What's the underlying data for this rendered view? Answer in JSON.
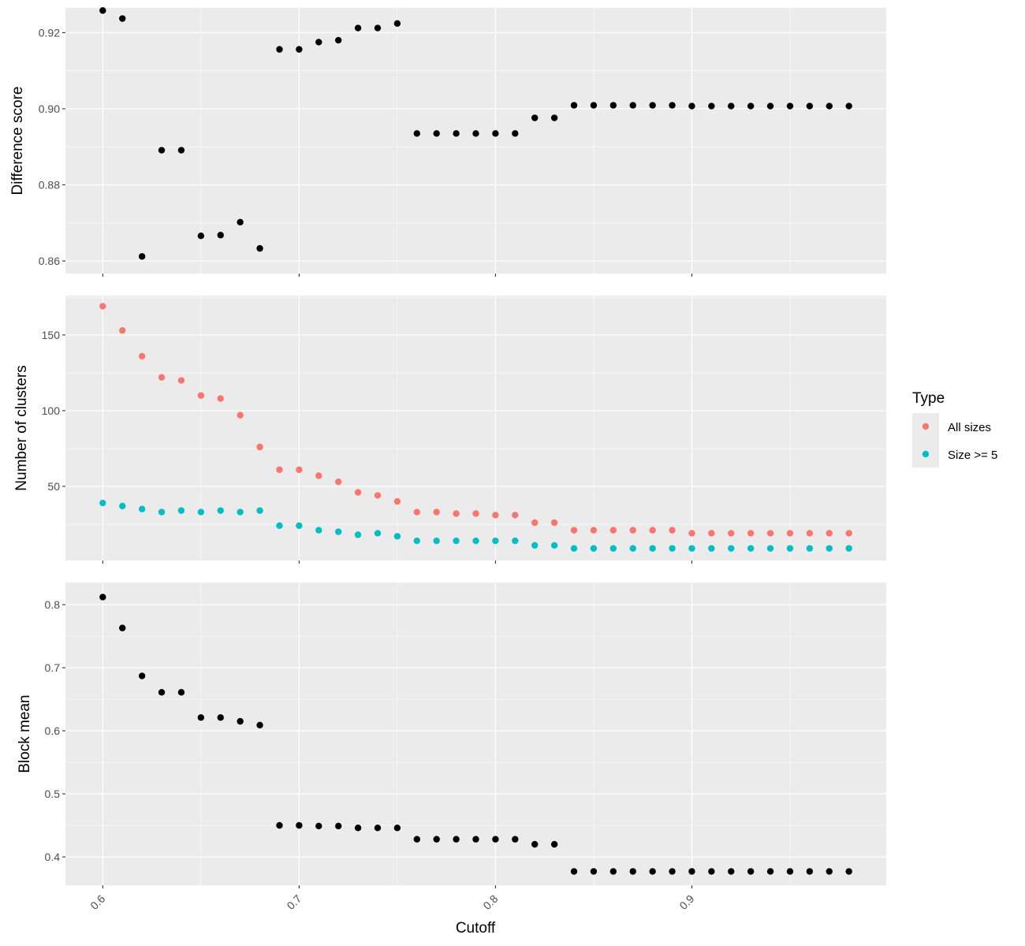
{
  "chart_data": {
    "type": "scatter",
    "facets": "vertical",
    "xlabel": "Cutoff",
    "x_ticks": [
      0.6,
      0.7,
      0.8,
      0.9
    ],
    "x_tick_labels": [
      "0.6",
      "0.7",
      "0.8",
      "0.9"
    ],
    "xlim": [
      0.581,
      0.999
    ],
    "x": [
      0.6,
      0.61,
      0.62,
      0.63,
      0.64,
      0.65,
      0.66,
      0.67,
      0.68,
      0.69,
      0.7,
      0.71,
      0.72,
      0.73,
      0.74,
      0.75,
      0.76,
      0.77,
      0.78,
      0.79,
      0.8,
      0.81,
      0.82,
      0.83,
      0.84,
      0.85,
      0.86,
      0.87,
      0.88,
      0.89,
      0.9,
      0.91,
      0.92,
      0.93,
      0.94,
      0.95,
      0.96,
      0.97,
      0.98
    ],
    "grid": true,
    "legend": {
      "title": "Type",
      "position": "right",
      "entries": [
        {
          "label": "All sizes",
          "color": "#F8766D"
        },
        {
          "label": "Size >= 5",
          "color": "#00BFC4"
        }
      ]
    },
    "panels": [
      {
        "ylabel": "Difference score",
        "ylim": [
          0.8567,
          0.9265
        ],
        "y_ticks": [
          0.86,
          0.88,
          0.9,
          0.92
        ],
        "y_tick_labels": [
          "0.86",
          "0.88",
          "0.90",
          "0.92"
        ],
        "series": [
          {
            "color": "#000000",
            "values": [
              0.9258,
              0.9237,
              0.8612,
              0.8891,
              0.8891,
              0.8666,
              0.8668,
              0.8702,
              0.8633,
              0.9156,
              0.9156,
              0.9175,
              0.918,
              0.9212,
              0.9212,
              0.9224,
              0.8935,
              0.8935,
              0.8935,
              0.8935,
              0.8935,
              0.8935,
              0.8976,
              0.8976,
              0.9009,
              0.9009,
              0.9009,
              0.9009,
              0.9009,
              0.9009,
              0.9007,
              0.9007,
              0.9007,
              0.9007,
              0.9007,
              0.9007,
              0.9007,
              0.9007,
              0.9007
            ]
          }
        ]
      },
      {
        "ylabel": "Number of clusters",
        "ylim": [
          1,
          176
        ],
        "y_ticks": [
          50,
          100,
          150
        ],
        "y_tick_labels": [
          "50",
          "100",
          "150"
        ],
        "series": [
          {
            "name": "All sizes",
            "color": "#F8766D",
            "values": [
              169,
              153,
              136,
              122,
              120,
              110,
              108,
              97,
              76,
              61,
              61,
              57,
              53,
              46,
              44,
              40,
              33,
              33,
              32,
              32,
              31,
              31,
              26,
              26,
              21,
              21,
              21,
              21,
              21,
              21,
              19,
              19,
              19,
              19,
              19,
              19,
              19,
              19,
              19
            ]
          },
          {
            "name": "Size >= 5",
            "color": "#00BFC4",
            "values": [
              39,
              37,
              35,
              33,
              34,
              33,
              34,
              33,
              34,
              24,
              24,
              21,
              20,
              18,
              19,
              17,
              14,
              14,
              14,
              14,
              14,
              14,
              11,
              11,
              9,
              9,
              9,
              9,
              9,
              9,
              9,
              9,
              9,
              9,
              9,
              9,
              9,
              9,
              9
            ]
          }
        ]
      },
      {
        "ylabel": "Block mean",
        "ylim": [
          0.355,
          0.835
        ],
        "y_ticks": [
          0.4,
          0.5,
          0.6,
          0.7,
          0.8
        ],
        "y_tick_labels": [
          "0.4",
          "0.5",
          "0.6",
          "0.7",
          "0.8"
        ],
        "series": [
          {
            "color": "#000000",
            "values": [
              0.812,
              0.763,
              0.687,
              0.661,
              0.661,
              0.621,
              0.621,
              0.615,
              0.609,
              0.45,
              0.45,
              0.449,
              0.449,
              0.446,
              0.446,
              0.446,
              0.428,
              0.428,
              0.428,
              0.428,
              0.428,
              0.428,
              0.42,
              0.42,
              0.377,
              0.377,
              0.377,
              0.377,
              0.377,
              0.377,
              0.377,
              0.377,
              0.377,
              0.377,
              0.377,
              0.377,
              0.377,
              0.377,
              0.377
            ]
          }
        ]
      }
    ]
  }
}
